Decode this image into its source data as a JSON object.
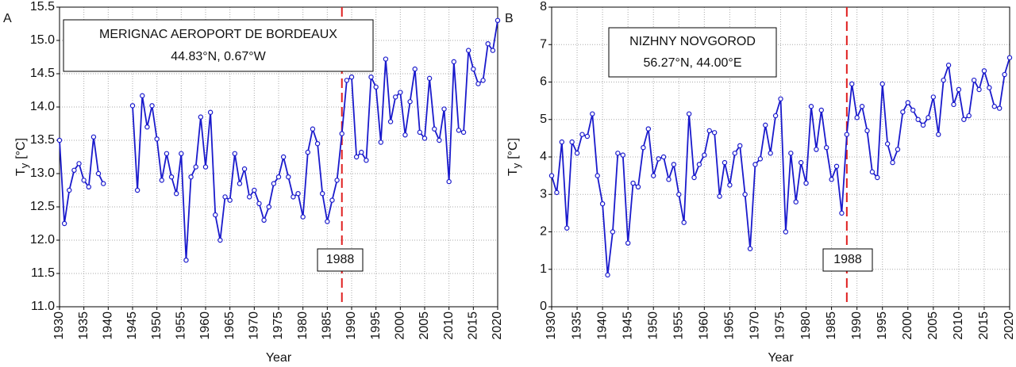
{
  "chart_data": [
    {
      "type": "line",
      "panel": "A",
      "title": "MERIGNAC AEROPORT DE BORDEAUX",
      "subtitle": "44.83°N, 0.67°W",
      "xlabel": "Year",
      "ylabel": "T",
      "ylabel_sub": "y",
      "ylabel_unit": "[°C]",
      "vline": 1988,
      "vline_color": "#e02020",
      "x": [
        1930,
        1931,
        1932,
        1933,
        1934,
        1935,
        1936,
        1937,
        1938,
        1939,
        1940,
        1941,
        1942,
        1943,
        1944,
        1945,
        1946,
        1947,
        1948,
        1949,
        1950,
        1951,
        1952,
        1953,
        1954,
        1955,
        1956,
        1957,
        1958,
        1959,
        1960,
        1961,
        1962,
        1963,
        1964,
        1965,
        1966,
        1967,
        1968,
        1969,
        1970,
        1971,
        1972,
        1973,
        1974,
        1975,
        1976,
        1977,
        1978,
        1979,
        1980,
        1981,
        1982,
        1983,
        1984,
        1985,
        1986,
        1987,
        1988,
        1989,
        1990,
        1991,
        1992,
        1993,
        1994,
        1995,
        1996,
        1997,
        1998,
        1999,
        2000,
        2001,
        2002,
        2003,
        2004,
        2005,
        2006,
        2007,
        2008,
        2009,
        2010,
        2011,
        2012,
        2013,
        2014,
        2015,
        2016,
        2017,
        2018,
        2019,
        2020
      ],
      "series": [
        {
          "color": "#1a1acc",
          "values": [
            13.5,
            12.25,
            12.75,
            13.05,
            13.15,
            12.9,
            12.8,
            13.55,
            13.0,
            12.85,
            null,
            null,
            null,
            null,
            null,
            14.02,
            12.75,
            14.17,
            13.7,
            14.02,
            13.52,
            12.9,
            13.3,
            12.95,
            12.7,
            13.3,
            11.7,
            12.95,
            13.1,
            13.85,
            13.1,
            13.92,
            12.38,
            12.0,
            12.65,
            12.6,
            13.3,
            12.85,
            13.07,
            12.65,
            12.75,
            12.55,
            12.3,
            12.5,
            12.85,
            12.95,
            13.25,
            12.95,
            12.65,
            12.7,
            12.35,
            13.32,
            13.67,
            13.45,
            12.7,
            12.28,
            12.6,
            12.9,
            13.6,
            14.4,
            14.45,
            13.25,
            13.32,
            13.2,
            14.45,
            14.3,
            13.47,
            14.72,
            13.78,
            14.15,
            14.22,
            13.58,
            14.08,
            14.57,
            13.62,
            13.53,
            14.43,
            13.67,
            13.5,
            13.97,
            12.88,
            14.68,
            13.65,
            13.62,
            14.85,
            14.57,
            14.35,
            14.4,
            14.95,
            14.85,
            15.3
          ]
        }
      ],
      "xlim": [
        1930,
        2020
      ],
      "xticks": [
        1930,
        1935,
        1940,
        1945,
        1950,
        1955,
        1960,
        1965,
        1970,
        1975,
        1980,
        1985,
        1990,
        1995,
        2000,
        2005,
        2010,
        2015,
        2020
      ],
      "ylim": [
        11,
        15.5
      ],
      "yticks": [
        {
          "value": 11,
          "label": "11.0"
        },
        11.5,
        {
          "value": 12,
          "label": "12.0"
        },
        12.5,
        {
          "value": 13,
          "label": "13.0"
        },
        13.5,
        {
          "value": 14,
          "label": "14.0"
        },
        14.5,
        {
          "value": 15,
          "label": "15.0"
        },
        15.5
      ],
      "grid": true
    },
    {
      "type": "line",
      "panel": "B",
      "title": "NIZHNY NOVGOROD",
      "subtitle": "56.27°N, 44.00°E",
      "xlabel": "Year",
      "ylabel": "T",
      "ylabel_sub": "y",
      "ylabel_unit": "[°C]",
      "vline": 1988,
      "vline_color": "#e02020",
      "x": [
        1930,
        1931,
        1932,
        1933,
        1934,
        1935,
        1936,
        1937,
        1938,
        1939,
        1940,
        1941,
        1942,
        1943,
        1944,
        1945,
        1946,
        1947,
        1948,
        1949,
        1950,
        1951,
        1952,
        1953,
        1954,
        1955,
        1956,
        1957,
        1958,
        1959,
        1960,
        1961,
        1962,
        1963,
        1964,
        1965,
        1966,
        1967,
        1968,
        1969,
        1970,
        1971,
        1972,
        1973,
        1974,
        1975,
        1976,
        1977,
        1978,
        1979,
        1980,
        1981,
        1982,
        1983,
        1984,
        1985,
        1986,
        1987,
        1988,
        1989,
        1990,
        1991,
        1992,
        1993,
        1994,
        1995,
        1996,
        1997,
        1998,
        1999,
        2000,
        2001,
        2002,
        2003,
        2004,
        2005,
        2006,
        2007,
        2008,
        2009,
        2010,
        2011,
        2012,
        2013,
        2014,
        2015,
        2016,
        2017,
        2018,
        2019,
        2020
      ],
      "series": [
        {
          "color": "#1a1acc",
          "values": [
            3.5,
            3.05,
            4.4,
            2.1,
            4.4,
            4.1,
            4.6,
            4.55,
            5.15,
            3.5,
            2.75,
            0.85,
            2.0,
            4.1,
            4.05,
            1.7,
            3.3,
            3.2,
            4.25,
            4.75,
            3.5,
            3.95,
            4.0,
            3.4,
            3.8,
            3.0,
            2.25,
            5.15,
            3.45,
            3.8,
            4.05,
            4.7,
            4.65,
            2.95,
            3.85,
            3.25,
            4.1,
            4.3,
            3.0,
            1.55,
            3.8,
            3.95,
            4.85,
            4.1,
            5.1,
            5.55,
            2.0,
            4.1,
            2.8,
            3.85,
            3.3,
            5.35,
            4.2,
            5.25,
            4.25,
            3.4,
            3.75,
            2.5,
            4.6,
            5.95,
            5.05,
            5.35,
            4.7,
            3.6,
            3.45,
            5.95,
            4.35,
            3.85,
            4.2,
            5.2,
            5.45,
            5.25,
            5.0,
            4.85,
            5.05,
            5.6,
            4.6,
            6.05,
            6.45,
            5.4,
            5.8,
            5.0,
            5.1,
            6.05,
            5.8,
            6.3,
            5.85,
            5.35,
            5.3,
            6.2,
            6.65
          ]
        }
      ],
      "xlim": [
        1930,
        2020
      ],
      "xticks": [
        1930,
        1935,
        1940,
        1945,
        1950,
        1955,
        1960,
        1965,
        1970,
        1975,
        1980,
        1985,
        1990,
        1995,
        2000,
        2005,
        2010,
        2015,
        2020
      ],
      "ylim": [
        0,
        8
      ],
      "yticks": [
        0,
        1,
        2,
        3,
        4,
        5,
        6,
        7,
        8
      ],
      "grid": true
    }
  ]
}
